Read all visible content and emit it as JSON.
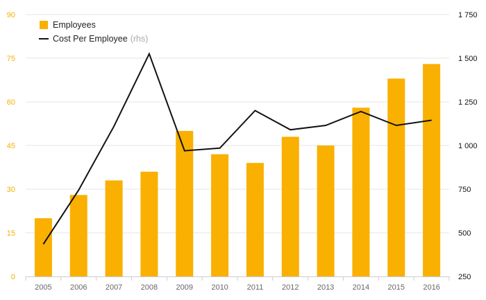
{
  "chart_data": {
    "type": "bar",
    "categories": [
      "2005",
      "2006",
      "2007",
      "2008",
      "2009",
      "2010",
      "2011",
      "2012",
      "2013",
      "2014",
      "2015",
      "2016"
    ],
    "series": [
      {
        "name": "Employees",
        "type": "bar",
        "axis": "left",
        "color": "#f9b000",
        "values": [
          20,
          28,
          33,
          36,
          50,
          42,
          39,
          48,
          45,
          58,
          68,
          73
        ]
      },
      {
        "name": "Cost Per Employee",
        "name_suffix": "(rhs)",
        "type": "line",
        "axis": "right",
        "color": "#111111",
        "values": [
          435,
          745,
          1110,
          1525,
          970,
          985,
          1200,
          1090,
          1115,
          1195,
          1115,
          1145
        ]
      }
    ],
    "left_axis": {
      "ylim": [
        0,
        90
      ],
      "ticks": [
        0,
        15,
        30,
        45,
        60,
        75,
        90
      ],
      "tick_labels": [
        "0",
        "15",
        "30",
        "45",
        "60",
        "75",
        "90"
      ],
      "color": "#f5b000"
    },
    "right_axis": {
      "ylim": [
        250,
        1750
      ],
      "ticks": [
        250,
        500,
        750,
        1000,
        1250,
        1500,
        1750
      ],
      "tick_labels": [
        "250",
        "500",
        "750",
        "1 000",
        "1 250",
        "1 500",
        "1 750"
      ],
      "color": "#111111"
    },
    "grid": true,
    "legend_position": "top-left",
    "title": "",
    "xlabel": "",
    "ylabel": ""
  }
}
